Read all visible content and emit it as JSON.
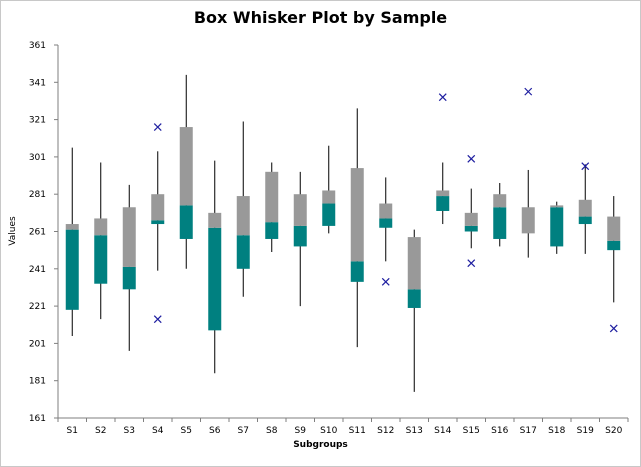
{
  "chart_data": {
    "type": "box",
    "title": "Box Whisker Plot by Sample",
    "xlabel": "Subgroups",
    "ylabel": "Values",
    "ylim": [
      161,
      361
    ],
    "yticks": [
      161,
      181,
      201,
      221,
      241,
      261,
      281,
      301,
      321,
      341,
      361
    ],
    "categories": [
      "S1",
      "S2",
      "S3",
      "S4",
      "S5",
      "S6",
      "S7",
      "S8",
      "S9",
      "S10",
      "S11",
      "S12",
      "S13",
      "S14",
      "S15",
      "S16",
      "S17",
      "S18",
      "S19",
      "S20"
    ],
    "grid": false,
    "colors": {
      "lower_box": "#008080",
      "upper_box": "#999999",
      "whisker": "#000000",
      "outlier": "#1f1fa0"
    },
    "boxes": [
      {
        "min": 205,
        "q1": 219,
        "median": 262,
        "q3": 265,
        "max": 306,
        "outliers": []
      },
      {
        "min": 214,
        "q1": 233,
        "median": 259,
        "q3": 268,
        "max": 298,
        "outliers": []
      },
      {
        "min": 197,
        "q1": 230,
        "median": 242,
        "q3": 274,
        "max": 286,
        "outliers": []
      },
      {
        "min": 240,
        "q1": 265,
        "median": 267,
        "q3": 281,
        "max": 304,
        "outliers": [
          214,
          317
        ]
      },
      {
        "min": 241,
        "q1": 257,
        "median": 275,
        "q3": 317,
        "max": 345,
        "outliers": []
      },
      {
        "min": 185,
        "q1": 208,
        "median": 263,
        "q3": 271,
        "max": 299,
        "outliers": []
      },
      {
        "min": 226,
        "q1": 241,
        "median": 259,
        "q3": 280,
        "max": 320,
        "outliers": []
      },
      {
        "min": 250,
        "q1": 257,
        "median": 266,
        "q3": 293,
        "max": 298,
        "outliers": []
      },
      {
        "min": 221,
        "q1": 253,
        "median": 264,
        "q3": 281,
        "max": 293,
        "outliers": []
      },
      {
        "min": 260,
        "q1": 264,
        "median": 276,
        "q3": 283,
        "max": 307,
        "outliers": []
      },
      {
        "min": 199,
        "q1": 234,
        "median": 245,
        "q3": 295,
        "max": 327,
        "outliers": []
      },
      {
        "min": 245,
        "q1": 263,
        "median": 268,
        "q3": 276,
        "max": 290,
        "outliers": [
          234
        ]
      },
      {
        "min": 175,
        "q1": 220,
        "median": 230,
        "q3": 258,
        "max": 262,
        "outliers": []
      },
      {
        "min": 265,
        "q1": 272,
        "median": 280,
        "q3": 283,
        "max": 298,
        "outliers": [
          333
        ]
      },
      {
        "min": 252,
        "q1": 261,
        "median": 264,
        "q3": 271,
        "max": 284,
        "outliers": [
          244,
          300
        ]
      },
      {
        "min": 253,
        "q1": 257,
        "median": 274,
        "q3": 281,
        "max": 287,
        "outliers": []
      },
      {
        "min": 247,
        "q1": 260,
        "median": 260,
        "q3": 274,
        "max": 294,
        "outliers": [
          336
        ]
      },
      {
        "min": 249,
        "q1": 253,
        "median": 274,
        "q3": 275,
        "max": 277,
        "outliers": []
      },
      {
        "min": 249,
        "q1": 265,
        "median": 269,
        "q3": 278,
        "max": 297,
        "outliers": [
          296
        ]
      },
      {
        "min": 223,
        "q1": 251,
        "median": 256,
        "q3": 269,
        "max": 280,
        "outliers": [
          209
        ]
      }
    ]
  }
}
